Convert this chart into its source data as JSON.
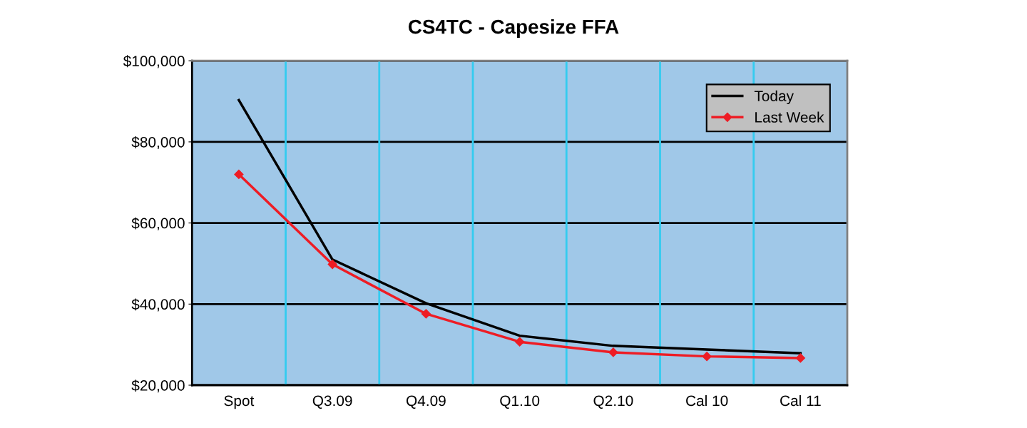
{
  "chart_data": {
    "type": "line",
    "title": "CS4TC - Capesize FFA",
    "categories": [
      "Spot",
      "Q3.09",
      "Q4.09",
      "Q1.10",
      "Q2.10",
      "Cal 10",
      "Cal 11"
    ],
    "series": [
      {
        "name": "Today",
        "color": "#000000",
        "marker": "none",
        "values": [
          90300,
          51000,
          40200,
          32200,
          29700,
          28800,
          27900
        ]
      },
      {
        "name": "Last Week",
        "color": "#ee1c24",
        "marker": "diamond",
        "values": [
          72000,
          49800,
          37600,
          30700,
          28100,
          27100,
          26700
        ]
      }
    ],
    "ylim": [
      20000,
      100000
    ],
    "yticks": [
      {
        "value": 20000,
        "label": "$20,000"
      },
      {
        "value": 40000,
        "label": "$40,000"
      },
      {
        "value": 60000,
        "label": "$60,000"
      },
      {
        "value": 80000,
        "label": "$80,000"
      },
      {
        "value": 100000,
        "label": "$100,000"
      }
    ],
    "grid": true,
    "legend": "top right"
  }
}
